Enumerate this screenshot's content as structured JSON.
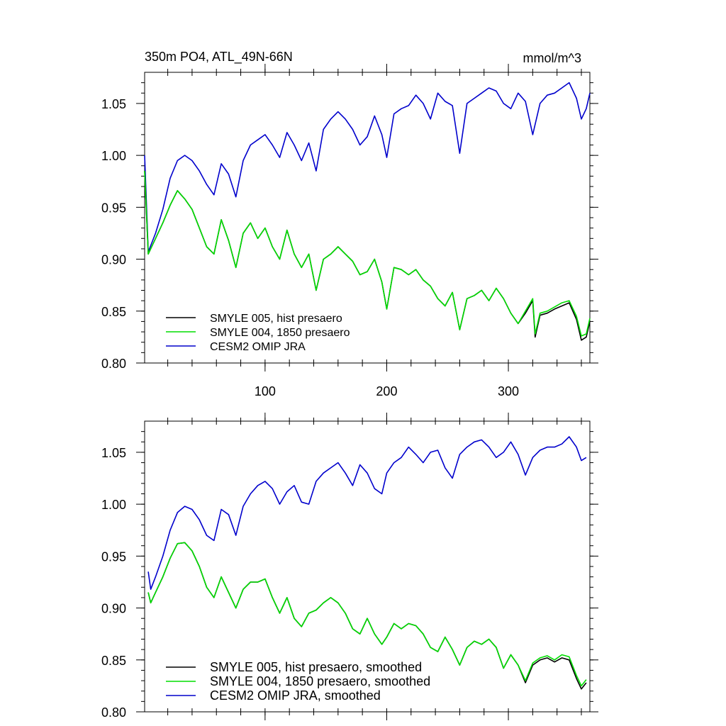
{
  "chart_data": [
    {
      "type": "line",
      "title": "350m PO4, ATL_49N-66N",
      "units": "mmol/m^3",
      "xlim": [
        1,
        367
      ],
      "ylim": [
        0.8,
        1.08
      ],
      "xticks": [
        100,
        200,
        300
      ],
      "xtick_labels": [
        "100",
        "200",
        "300"
      ],
      "yticks": [
        0.8,
        0.85,
        0.9,
        0.95,
        1.0,
        1.05
      ],
      "ytick_labels": [
        "0.80",
        "0.85",
        "0.90",
        "0.95",
        "1.00",
        "1.05"
      ],
      "grid": false,
      "legend_position": "bottom-left",
      "series": [
        {
          "name": "SMYLE 005, hist presaero",
          "color": "#000000",
          "x": [
            1,
            4,
            10,
            16,
            22,
            28,
            34,
            40,
            46,
            52,
            58,
            64,
            70,
            76,
            82,
            88,
            94,
            100,
            106,
            112,
            118,
            124,
            130,
            136,
            142,
            148,
            154,
            160,
            166,
            172,
            178,
            184,
            190,
            196,
            200,
            206,
            212,
            218,
            224,
            230,
            236,
            242,
            248,
            254,
            260,
            266,
            272,
            278,
            284,
            290,
            296,
            302,
            308,
            314,
            320,
            322,
            326,
            332,
            338,
            344,
            350,
            356,
            360,
            364,
            367
          ],
          "y": [
            0.985,
            0.905,
            0.92,
            0.935,
            0.952,
            0.966,
            0.958,
            0.948,
            0.93,
            0.912,
            0.905,
            0.938,
            0.918,
            0.892,
            0.925,
            0.935,
            0.92,
            0.93,
            0.912,
            0.9,
            0.928,
            0.905,
            0.892,
            0.905,
            0.87,
            0.9,
            0.905,
            0.912,
            0.905,
            0.898,
            0.885,
            0.888,
            0.9,
            0.878,
            0.852,
            0.892,
            0.89,
            0.885,
            0.89,
            0.88,
            0.874,
            0.862,
            0.855,
            0.868,
            0.832,
            0.862,
            0.865,
            0.87,
            0.86,
            0.872,
            0.862,
            0.848,
            0.838,
            0.848,
            0.86,
            0.825,
            0.846,
            0.848,
            0.852,
            0.855,
            0.858,
            0.842,
            0.822,
            0.825,
            0.84
          ]
        },
        {
          "name": "SMYLE 004, 1850 presaero",
          "color": "#00dd00",
          "x": [
            1,
            4,
            10,
            16,
            22,
            28,
            34,
            40,
            46,
            52,
            58,
            64,
            70,
            76,
            82,
            88,
            94,
            100,
            106,
            112,
            118,
            124,
            130,
            136,
            142,
            148,
            154,
            160,
            166,
            172,
            178,
            184,
            190,
            196,
            200,
            206,
            212,
            218,
            224,
            230,
            236,
            242,
            248,
            254,
            260,
            266,
            272,
            278,
            284,
            290,
            296,
            302,
            308,
            314,
            320,
            322,
            326,
            332,
            338,
            344,
            350,
            356,
            360,
            364,
            367
          ],
          "y": [
            0.985,
            0.905,
            0.92,
            0.935,
            0.952,
            0.966,
            0.958,
            0.948,
            0.93,
            0.912,
            0.905,
            0.938,
            0.918,
            0.892,
            0.925,
            0.935,
            0.92,
            0.93,
            0.912,
            0.9,
            0.928,
            0.905,
            0.892,
            0.905,
            0.87,
            0.9,
            0.905,
            0.912,
            0.905,
            0.898,
            0.885,
            0.888,
            0.9,
            0.878,
            0.852,
            0.892,
            0.89,
            0.885,
            0.89,
            0.88,
            0.874,
            0.862,
            0.855,
            0.868,
            0.832,
            0.862,
            0.865,
            0.87,
            0.86,
            0.872,
            0.862,
            0.848,
            0.838,
            0.85,
            0.862,
            0.828,
            0.848,
            0.85,
            0.854,
            0.858,
            0.86,
            0.845,
            0.826,
            0.828,
            0.843
          ]
        },
        {
          "name": "CESM2 OMIP JRA",
          "color": "#0000cc",
          "x": [
            1,
            4,
            10,
            16,
            22,
            28,
            34,
            40,
            46,
            52,
            58,
            64,
            70,
            76,
            82,
            88,
            94,
            100,
            106,
            112,
            118,
            124,
            130,
            136,
            142,
            148,
            154,
            160,
            166,
            172,
            178,
            184,
            190,
            196,
            200,
            206,
            212,
            218,
            224,
            230,
            236,
            242,
            248,
            254,
            260,
            266,
            272,
            278,
            284,
            290,
            296,
            302,
            308,
            314,
            320,
            326,
            332,
            338,
            344,
            350,
            356,
            360,
            364,
            367
          ],
          "y": [
            1.0,
            0.907,
            0.925,
            0.948,
            0.978,
            0.995,
            1.0,
            0.995,
            0.985,
            0.972,
            0.962,
            0.992,
            0.982,
            0.96,
            0.995,
            1.01,
            1.015,
            1.02,
            1.01,
            0.998,
            1.022,
            1.01,
            0.995,
            1.012,
            0.985,
            1.025,
            1.035,
            1.042,
            1.035,
            1.025,
            1.01,
            1.018,
            1.038,
            1.02,
            0.998,
            1.04,
            1.045,
            1.048,
            1.058,
            1.05,
            1.035,
            1.06,
            1.052,
            1.048,
            1.002,
            1.05,
            1.055,
            1.06,
            1.065,
            1.062,
            1.05,
            1.045,
            1.06,
            1.052,
            1.02,
            1.05,
            1.058,
            1.06,
            1.065,
            1.07,
            1.055,
            1.035,
            1.045,
            1.06
          ]
        }
      ]
    },
    {
      "type": "line",
      "title": "",
      "xlim": [
        1,
        367
      ],
      "ylim": [
        0.8,
        1.08
      ],
      "xticks": [
        100,
        200,
        300
      ],
      "xtick_labels": [
        "",
        "",
        ""
      ],
      "yticks": [
        0.8,
        0.85,
        0.9,
        0.95,
        1.0,
        1.05
      ],
      "ytick_labels": [
        "0.80",
        "0.85",
        "0.90",
        "0.95",
        "1.00",
        "1.05"
      ],
      "grid": false,
      "legend_position": "bottom-left",
      "series": [
        {
          "name": "SMYLE 005, hist presaero, smoothed",
          "color": "#000000",
          "x": [
            4,
            6,
            10,
            16,
            22,
            28,
            34,
            40,
            46,
            52,
            58,
            64,
            70,
            76,
            82,
            88,
            94,
            100,
            106,
            112,
            118,
            124,
            130,
            136,
            142,
            148,
            154,
            160,
            166,
            172,
            178,
            184,
            190,
            196,
            200,
            206,
            212,
            218,
            224,
            230,
            236,
            242,
            248,
            254,
            260,
            266,
            272,
            278,
            284,
            290,
            296,
            302,
            308,
            314,
            320,
            326,
            332,
            338,
            344,
            350,
            356,
            360,
            364
          ],
          "y": [
            0.915,
            0.905,
            0.915,
            0.93,
            0.948,
            0.962,
            0.963,
            0.955,
            0.94,
            0.92,
            0.91,
            0.93,
            0.915,
            0.9,
            0.918,
            0.925,
            0.925,
            0.928,
            0.91,
            0.895,
            0.91,
            0.89,
            0.882,
            0.895,
            0.898,
            0.905,
            0.91,
            0.905,
            0.895,
            0.88,
            0.875,
            0.89,
            0.875,
            0.865,
            0.872,
            0.885,
            0.88,
            0.885,
            0.883,
            0.875,
            0.862,
            0.858,
            0.872,
            0.86,
            0.845,
            0.862,
            0.868,
            0.865,
            0.87,
            0.862,
            0.842,
            0.855,
            0.845,
            0.828,
            0.845,
            0.85,
            0.852,
            0.848,
            0.852,
            0.85,
            0.832,
            0.822,
            0.828
          ]
        },
        {
          "name": "SMYLE 004, 1850 presaero, smoothed",
          "color": "#00dd00",
          "x": [
            4,
            6,
            10,
            16,
            22,
            28,
            34,
            40,
            46,
            52,
            58,
            64,
            70,
            76,
            82,
            88,
            94,
            100,
            106,
            112,
            118,
            124,
            130,
            136,
            142,
            148,
            154,
            160,
            166,
            172,
            178,
            184,
            190,
            196,
            200,
            206,
            212,
            218,
            224,
            230,
            236,
            242,
            248,
            254,
            260,
            266,
            272,
            278,
            284,
            290,
            296,
            302,
            308,
            314,
            320,
            326,
            332,
            338,
            344,
            350,
            356,
            360,
            364
          ],
          "y": [
            0.915,
            0.905,
            0.915,
            0.93,
            0.948,
            0.962,
            0.963,
            0.955,
            0.94,
            0.92,
            0.91,
            0.93,
            0.915,
            0.9,
            0.918,
            0.925,
            0.925,
            0.928,
            0.91,
            0.895,
            0.91,
            0.89,
            0.882,
            0.895,
            0.898,
            0.905,
            0.91,
            0.905,
            0.895,
            0.88,
            0.875,
            0.89,
            0.875,
            0.865,
            0.872,
            0.885,
            0.88,
            0.885,
            0.883,
            0.875,
            0.862,
            0.858,
            0.872,
            0.86,
            0.845,
            0.862,
            0.868,
            0.865,
            0.87,
            0.862,
            0.842,
            0.855,
            0.845,
            0.83,
            0.847,
            0.852,
            0.854,
            0.85,
            0.855,
            0.853,
            0.835,
            0.825,
            0.831
          ]
        },
        {
          "name": "CESM2 OMIP JRA, smoothed",
          "color": "#0000cc",
          "x": [
            4,
            6,
            10,
            16,
            22,
            28,
            34,
            40,
            46,
            52,
            58,
            64,
            70,
            76,
            82,
            88,
            94,
            100,
            106,
            112,
            118,
            124,
            130,
            136,
            142,
            148,
            154,
            160,
            166,
            172,
            178,
            184,
            190,
            196,
            200,
            206,
            212,
            218,
            224,
            230,
            236,
            242,
            248,
            254,
            260,
            266,
            272,
            278,
            284,
            290,
            296,
            302,
            308,
            314,
            320,
            326,
            332,
            338,
            344,
            350,
            356,
            360,
            364
          ],
          "y": [
            0.935,
            0.918,
            0.93,
            0.95,
            0.975,
            0.992,
            0.998,
            0.995,
            0.985,
            0.97,
            0.965,
            0.995,
            0.99,
            0.97,
            0.998,
            1.01,
            1.018,
            1.022,
            1.015,
            1.0,
            1.012,
            1.018,
            1.002,
            1.0,
            1.022,
            1.03,
            1.035,
            1.04,
            1.03,
            1.018,
            1.038,
            1.03,
            1.015,
            1.01,
            1.03,
            1.04,
            1.045,
            1.055,
            1.048,
            1.04,
            1.05,
            1.052,
            1.035,
            1.025,
            1.048,
            1.055,
            1.06,
            1.062,
            1.055,
            1.045,
            1.05,
            1.06,
            1.048,
            1.028,
            1.045,
            1.052,
            1.055,
            1.055,
            1.058,
            1.065,
            1.055,
            1.042,
            1.045
          ]
        }
      ]
    }
  ]
}
